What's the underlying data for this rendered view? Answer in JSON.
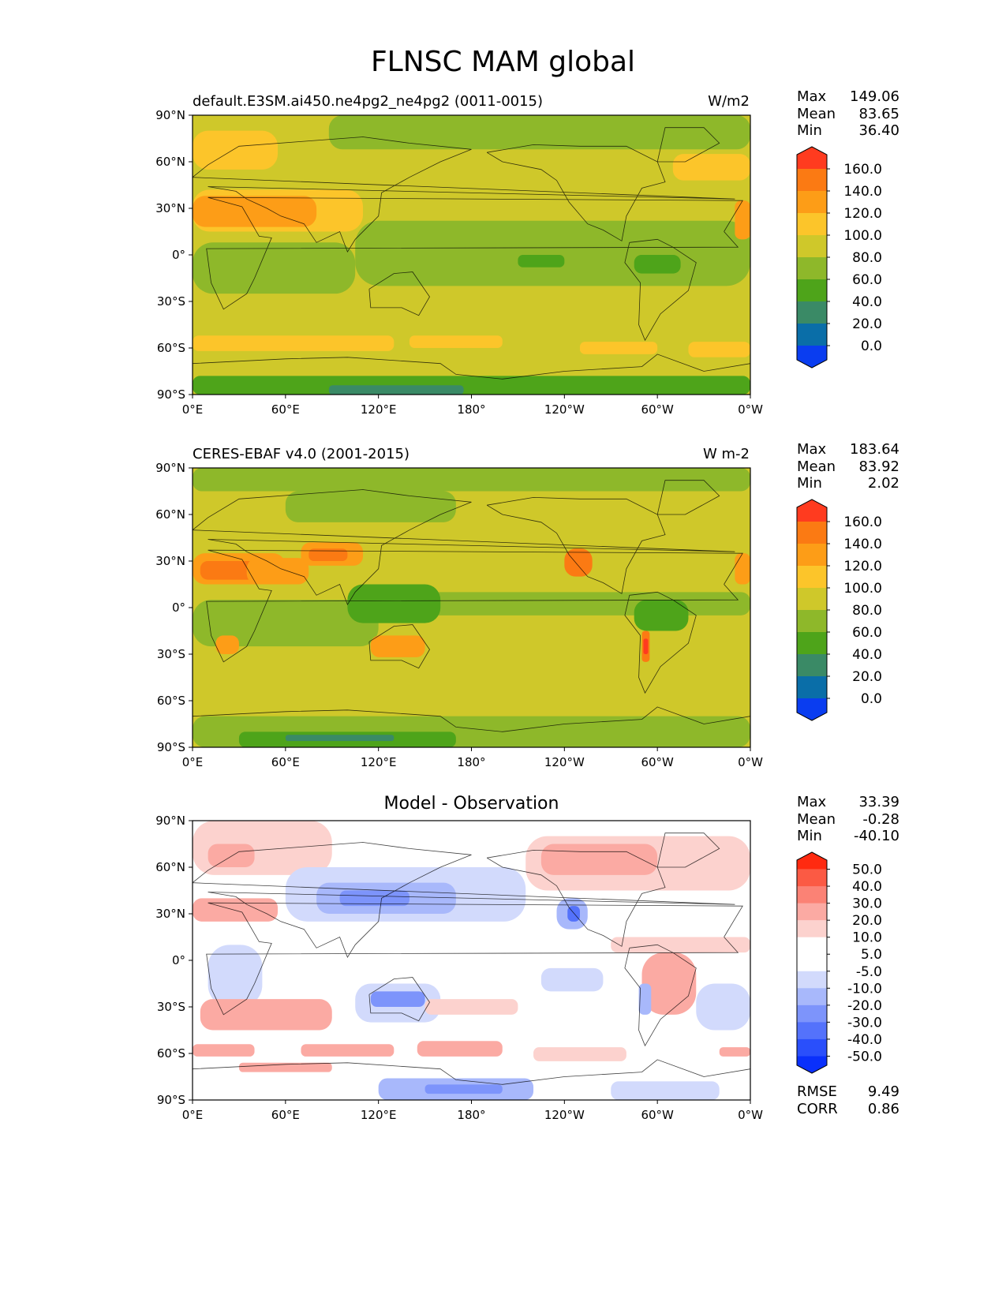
{
  "figure_title": "FLNSC MAM global",
  "chart_data": [
    {
      "type": "heatmap",
      "left_title": "default.E3SM.ai450.ne4pg2_ne4pg2 (0011-0015)",
      "right_title": "W/m2",
      "center_title": "",
      "stats": {
        "max": "149.06",
        "mean": "83.65",
        "min": "36.40"
      },
      "x_ticks": [
        "0°E",
        "60°E",
        "120°E",
        "180°",
        "120°W",
        "60°W",
        "0°W"
      ],
      "y_ticks": [
        "90°N",
        "60°N",
        "30°N",
        "0°",
        "30°S",
        "60°S",
        "90°S"
      ],
      "xlim": [
        0,
        360
      ],
      "ylim": [
        -90,
        90
      ],
      "colorbar": {
        "labels": [
          "160.0",
          "140.0",
          "120.0",
          "100.0",
          "80.0",
          "60.0",
          "40.0",
          "20.0",
          "0.0"
        ],
        "colors": [
          "#ff3b1f",
          "#fb7a13",
          "#fd9d17",
          "#fcc52a",
          "#cfc82a",
          "#8eb82a",
          "#4ea41a",
          "#3a8a66",
          "#0a6ea8",
          "#0a3df0"
        ]
      },
      "regions": [
        {
          "name": "background",
          "color": "#cfc82a",
          "x0": 0,
          "x1": 360,
          "y0": -90,
          "y1": 90
        },
        {
          "name": "arctic-band",
          "color": "#8eb82a",
          "x0": 88,
          "x1": 360,
          "y0": 68,
          "y1": 90
        },
        {
          "name": "n-europe",
          "color": "#fcc52a",
          "x0": 0,
          "x1": 55,
          "y0": 55,
          "y1": 80
        },
        {
          "name": "tropical-indian",
          "color": "#8eb82a",
          "x0": 0,
          "x1": 105,
          "y0": -25,
          "y1": 8
        },
        {
          "name": "tropical-pacific",
          "color": "#8eb82a",
          "x0": 105,
          "x1": 360,
          "y0": -20,
          "y1": 22
        },
        {
          "name": "sahara-arabia",
          "color": "#fcc52a",
          "x0": 0,
          "x1": 110,
          "y0": 15,
          "y1": 42
        },
        {
          "name": "sahara-core",
          "color": "#fd9d17",
          "x0": 0,
          "x1": 80,
          "y0": 18,
          "y1": 38
        },
        {
          "name": "pacific-warm-pool",
          "color": "#4ea41a",
          "x0": 210,
          "x1": 240,
          "y0": -8,
          "y1": 0
        },
        {
          "name": "south-america-n",
          "color": "#4ea41a",
          "x0": 285,
          "x1": 315,
          "y0": -12,
          "y1": 0
        },
        {
          "name": "ne-atlantic",
          "color": "#fcc52a",
          "x0": 310,
          "x1": 360,
          "y0": 48,
          "y1": 65
        },
        {
          "name": "nw-africa",
          "color": "#fd9d17",
          "x0": 350,
          "x1": 360,
          "y0": 10,
          "y1": 35
        },
        {
          "name": "so-band-1",
          "color": "#fcc52a",
          "x0": 0,
          "x1": 130,
          "y0": -62,
          "y1": -52
        },
        {
          "name": "so-band-2",
          "color": "#fcc52a",
          "x0": 140,
          "x1": 200,
          "y0": -60,
          "y1": -52
        },
        {
          "name": "so-band-3",
          "color": "#fcc52a",
          "x0": 250,
          "x1": 300,
          "y0": -64,
          "y1": -56
        },
        {
          "name": "so-band-4",
          "color": "#fcc52a",
          "x0": 320,
          "x1": 360,
          "y0": -66,
          "y1": -56
        },
        {
          "name": "antarctica",
          "color": "#4ea41a",
          "x0": 0,
          "x1": 360,
          "y0": -90,
          "y1": -78
        },
        {
          "name": "antarctic-plateau",
          "color": "#3a8a66",
          "x0": 88,
          "x1": 175,
          "y0": -90,
          "y1": -84
        }
      ]
    },
    {
      "type": "heatmap",
      "left_title": "CERES-EBAF v4.0 (2001-2015)",
      "right_title": "W m-2",
      "center_title": "",
      "stats": {
        "max": "183.64",
        "mean": "83.92",
        "min": "2.02"
      },
      "x_ticks": [
        "0°E",
        "60°E",
        "120°E",
        "180°",
        "120°W",
        "60°W",
        "0°W"
      ],
      "y_ticks": [
        "90°N",
        "60°N",
        "30°N",
        "0°",
        "30°S",
        "60°S",
        "90°S"
      ],
      "xlim": [
        0,
        360
      ],
      "ylim": [
        -90,
        90
      ],
      "colorbar": {
        "labels": [
          "160.0",
          "140.0",
          "120.0",
          "100.0",
          "80.0",
          "60.0",
          "40.0",
          "20.0",
          "0.0"
        ],
        "colors": [
          "#ff3b1f",
          "#fb7a13",
          "#fd9d17",
          "#fcc52a",
          "#cfc82a",
          "#8eb82a",
          "#4ea41a",
          "#3a8a66",
          "#0a6ea8",
          "#0a3df0"
        ]
      },
      "regions": [
        {
          "name": "background",
          "color": "#cfc82a",
          "x0": 0,
          "x1": 360,
          "y0": -90,
          "y1": 90
        },
        {
          "name": "arctic-band",
          "color": "#8eb82a",
          "x0": 0,
          "x1": 360,
          "y0": 75,
          "y1": 90
        },
        {
          "name": "siberia",
          "color": "#8eb82a",
          "x0": 60,
          "x1": 170,
          "y0": 55,
          "y1": 75
        },
        {
          "name": "tropical-indian",
          "color": "#8eb82a",
          "x0": 0,
          "x1": 120,
          "y0": -25,
          "y1": 5
        },
        {
          "name": "tropical-pacific",
          "color": "#8eb82a",
          "x0": 120,
          "x1": 360,
          "y0": -5,
          "y1": 10
        },
        {
          "name": "warm-pool",
          "color": "#4ea41a",
          "x0": 100,
          "x1": 160,
          "y0": -10,
          "y1": 15
        },
        {
          "name": "sahara",
          "color": "#fd9d17",
          "x0": 0,
          "x1": 60,
          "y0": 15,
          "y1": 35
        },
        {
          "name": "sahara-core",
          "color": "#fb7a13",
          "x0": 5,
          "x1": 45,
          "y0": 18,
          "y1": 30
        },
        {
          "name": "arabia",
          "color": "#fd9d17",
          "x0": 35,
          "x1": 75,
          "y0": 15,
          "y1": 32
        },
        {
          "name": "tibet",
          "color": "#fd9d17",
          "x0": 70,
          "x1": 110,
          "y0": 27,
          "y1": 42
        },
        {
          "name": "tibet-core",
          "color": "#fb7a13",
          "x0": 75,
          "x1": 100,
          "y0": 30,
          "y1": 38
        },
        {
          "name": "australia",
          "color": "#fd9d17",
          "x0": 115,
          "x1": 150,
          "y0": -32,
          "y1": -18
        },
        {
          "name": "sw-north-america",
          "color": "#fb7a13",
          "x0": 240,
          "x1": 258,
          "y0": 20,
          "y1": 38
        },
        {
          "name": "amazon",
          "color": "#4ea41a",
          "x0": 285,
          "x1": 320,
          "y0": -15,
          "y1": 5
        },
        {
          "name": "andes",
          "color": "#fb7a13",
          "x0": 290,
          "x1": 295,
          "y0": -35,
          "y1": -15
        },
        {
          "name": "andes-core",
          "color": "#ff3b1f",
          "x0": 291,
          "x1": 294,
          "y0": -30,
          "y1": -20
        },
        {
          "name": "s-africa",
          "color": "#fd9d17",
          "x0": 15,
          "x1": 30,
          "y0": -30,
          "y1": -18
        },
        {
          "name": "nw-africa",
          "color": "#fd9d17",
          "x0": 350,
          "x1": 360,
          "y0": 15,
          "y1": 35
        },
        {
          "name": "antarctica",
          "color": "#8eb82a",
          "x0": 0,
          "x1": 360,
          "y0": -90,
          "y1": -70
        },
        {
          "name": "antarctic-plateau",
          "color": "#4ea41a",
          "x0": 30,
          "x1": 170,
          "y0": -90,
          "y1": -80
        },
        {
          "name": "antarctic-core",
          "color": "#3a8a66",
          "x0": 60,
          "x1": 130,
          "y0": -86,
          "y1": -82
        }
      ]
    },
    {
      "type": "heatmap",
      "left_title": "",
      "right_title": "",
      "center_title": "Model - Observation",
      "stats": {
        "max": "33.39",
        "mean": "-0.28",
        "min": "-40.10"
      },
      "metrics": {
        "rmse": "9.49",
        "corr": "0.86"
      },
      "x_ticks": [
        "0°E",
        "60°E",
        "120°E",
        "180°",
        "120°W",
        "60°W",
        "0°W"
      ],
      "y_ticks": [
        "90°N",
        "60°N",
        "30°N",
        "0°",
        "30°S",
        "60°S",
        "90°S"
      ],
      "xlim": [
        0,
        360
      ],
      "ylim": [
        -90,
        90
      ],
      "colorbar": {
        "labels": [
          "50.0",
          "40.0",
          "30.0",
          "20.0",
          "10.0",
          "5.0",
          "-5.0",
          "-10.0",
          "-20.0",
          "-30.0",
          "-40.0",
          "-50.0"
        ],
        "colors": [
          "#ff2a10",
          "#fb5a44",
          "#fb8275",
          "#fbaaa3",
          "#fcd2ce",
          "#ffffff",
          "#ffffff",
          "#d2dafc",
          "#a8b8fb",
          "#7d94fb",
          "#5472fb",
          "#2a4ffb",
          "#0a30fb"
        ]
      },
      "regions": [
        {
          "name": "background",
          "color": "#ffffff",
          "x0": 0,
          "x1": 360,
          "y0": -90,
          "y1": 90
        },
        {
          "name": "nw-europe",
          "color": "#fcd2ce",
          "x0": 0,
          "x1": 90,
          "y0": 55,
          "y1": 90
        },
        {
          "name": "europe",
          "color": "#fbaaa3",
          "x0": 10,
          "x1": 40,
          "y0": 60,
          "y1": 75
        },
        {
          "name": "n-africa-plus",
          "color": "#fbaaa3",
          "x0": 0,
          "x1": 55,
          "y0": 25,
          "y1": 40
        },
        {
          "name": "asia-minus",
          "color": "#d2dafc",
          "x0": 60,
          "x1": 215,
          "y0": 25,
          "y1": 60
        },
        {
          "name": "asia-minus-core",
          "color": "#a8b8fb",
          "x0": 80,
          "x1": 170,
          "y0": 30,
          "y1": 50
        },
        {
          "name": "asia-minus-deep",
          "color": "#7d94fb",
          "x0": 95,
          "x1": 140,
          "y0": 35,
          "y1": 45
        },
        {
          "name": "n-america-plus",
          "color": "#fcd2ce",
          "x0": 215,
          "x1": 360,
          "y0": 45,
          "y1": 80
        },
        {
          "name": "canada-plus",
          "color": "#fbaaa3",
          "x0": 225,
          "x1": 300,
          "y0": 55,
          "y1": 75
        },
        {
          "name": "sw-us-minus",
          "color": "#a8b8fb",
          "x0": 235,
          "x1": 255,
          "y0": 20,
          "y1": 40
        },
        {
          "name": "sw-us-deep",
          "color": "#5472fb",
          "x0": 242,
          "x1": 250,
          "y0": 25,
          "y1": 35
        },
        {
          "name": "tropical-atlantic-plus",
          "color": "#fcd2ce",
          "x0": 270,
          "x1": 360,
          "y0": 5,
          "y1": 15
        },
        {
          "name": "s-america-plus",
          "color": "#fbaaa3",
          "x0": 290,
          "x1": 325,
          "y0": -35,
          "y1": 5
        },
        {
          "name": "andes-minus",
          "color": "#a8b8fb",
          "x0": 288,
          "x1": 296,
          "y0": -35,
          "y1": -15
        },
        {
          "name": "africa-minus",
          "color": "#d2dafc",
          "x0": 10,
          "x1": 45,
          "y0": -30,
          "y1": 10
        },
        {
          "name": "s-indian-plus",
          "color": "#fbaaa3",
          "x0": 5,
          "x1": 90,
          "y0": -45,
          "y1": -25
        },
        {
          "name": "australia-minus",
          "color": "#d2dafc",
          "x0": 105,
          "x1": 160,
          "y0": -40,
          "y1": -15
        },
        {
          "name": "australia-core",
          "color": "#7d94fb",
          "x0": 115,
          "x1": 150,
          "y0": -30,
          "y1": -20
        },
        {
          "name": "pacific-plus",
          "color": "#fcd2ce",
          "x0": 150,
          "x1": 210,
          "y0": -35,
          "y1": -25
        },
        {
          "name": "e-pacific-minus",
          "color": "#d2dafc",
          "x0": 225,
          "x1": 265,
          "y0": -20,
          "y1": -5
        },
        {
          "name": "s-atlantic-minus",
          "color": "#d2dafc",
          "x0": 325,
          "x1": 360,
          "y0": -45,
          "y1": -15
        },
        {
          "name": "so-plus-1",
          "color": "#fbaaa3",
          "x0": 0,
          "x1": 40,
          "y0": -62,
          "y1": -54
        },
        {
          "name": "so-plus-2",
          "color": "#fbaaa3",
          "x0": 70,
          "x1": 130,
          "y0": -62,
          "y1": -54
        },
        {
          "name": "so-plus-3",
          "color": "#fbaaa3",
          "x0": 145,
          "x1": 200,
          "y0": -62,
          "y1": -52
        },
        {
          "name": "so-plus-4",
          "color": "#fcd2ce",
          "x0": 220,
          "x1": 280,
          "y0": -65,
          "y1": -56
        },
        {
          "name": "so-plus-5",
          "color": "#fbaaa3",
          "x0": 340,
          "x1": 360,
          "y0": -62,
          "y1": -56
        },
        {
          "name": "antarctic-plus",
          "color": "#fbaaa3",
          "x0": 30,
          "x1": 90,
          "y0": -72,
          "y1": -66
        },
        {
          "name": "antarctic-minus",
          "color": "#a8b8fb",
          "x0": 120,
          "x1": 220,
          "y0": -90,
          "y1": -76
        },
        {
          "name": "antarctic-minus-core",
          "color": "#7d94fb",
          "x0": 150,
          "x1": 200,
          "y0": -86,
          "y1": -80
        },
        {
          "name": "antarctic-minus-2",
          "color": "#d2dafc",
          "x0": 270,
          "x1": 340,
          "y0": -90,
          "y1": -78
        }
      ]
    }
  ]
}
